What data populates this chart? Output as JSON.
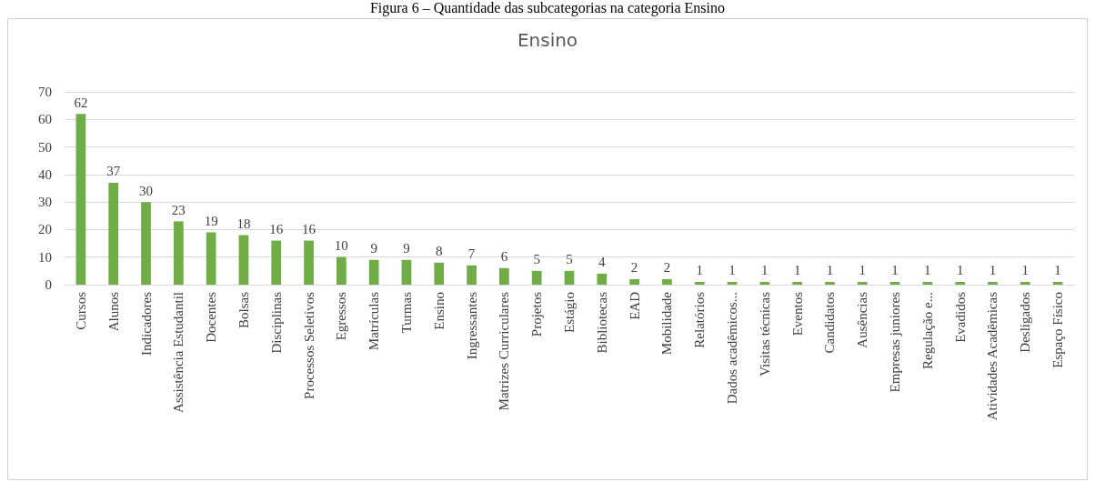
{
  "chart_data": {
    "type": "bar",
    "title": "Ensino",
    "annotations": [
      "Figura 6 – Quantidade das subcategorias na categoria Ensino"
    ],
    "categories": [
      "Cursos",
      "Alunos",
      "Indicadores",
      "Assistência Estudantil",
      "Docentes",
      "Bolsas",
      "Disciplinas",
      "Processos Seletivos",
      "Egressos",
      "Matrículas",
      "Turmas",
      "Ensino",
      "Ingressantes",
      "Matrizes Curriculares",
      "Projetos",
      "Estágio",
      "Bibliotecas",
      "EAD",
      "Mobilidade",
      "Relatórios",
      "Dados acadêmicos...",
      "Visitas técnicas",
      "Eventos",
      "Candidatos",
      "Ausências",
      "Empresas juniores",
      "Regulação e...",
      "Evadidos",
      "Atividades Acadêmicas",
      "Desligados",
      "Espaço Físico"
    ],
    "values": [
      62,
      37,
      30,
      23,
      19,
      18,
      16,
      16,
      10,
      9,
      9,
      8,
      7,
      6,
      5,
      5,
      4,
      2,
      2,
      1,
      1,
      1,
      1,
      1,
      1,
      1,
      1,
      1,
      1,
      1,
      1
    ],
    "color": "#70ad47",
    "ylim": [
      0,
      70
    ],
    "yticks": [
      0,
      10,
      20,
      30,
      40,
      50,
      60,
      70
    ],
    "grid": "y",
    "data_labels": true
  }
}
